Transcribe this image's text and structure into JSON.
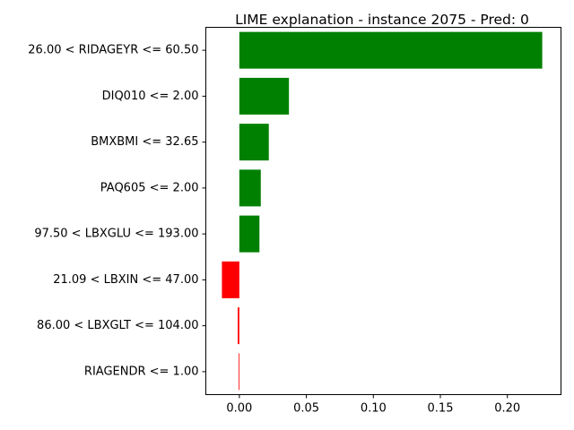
{
  "chart_data": {
    "type": "bar",
    "orientation": "horizontal",
    "title": "LIME explanation - instance 2075 - Pred: 0",
    "xlabel": "",
    "ylabel": "",
    "categories": [
      "26.00 < RIDAGEYR <= 60.50",
      "DIQ010 <= 2.00",
      "BMXBMI <= 32.65",
      "PAQ605 <= 2.00",
      "97.50 < LBXGLU <= 193.00",
      "21.09 < LBXIN <= 47.00",
      "86.00 < LBXGLT <= 104.00",
      "RIAGENDR <= 1.00"
    ],
    "values": [
      0.226,
      0.037,
      0.022,
      0.016,
      0.015,
      -0.013,
      -0.0012,
      -0.0005
    ],
    "xlim": [
      -0.025,
      0.24
    ],
    "xticks": [
      0.0,
      0.05,
      0.1,
      0.15,
      0.2
    ],
    "xtick_labels": [
      "0.00",
      "0.05",
      "0.10",
      "0.15",
      "0.20"
    ],
    "colors": {
      "positive": "#008000",
      "negative": "#ff0000"
    },
    "grid": false,
    "legend": "none"
  }
}
